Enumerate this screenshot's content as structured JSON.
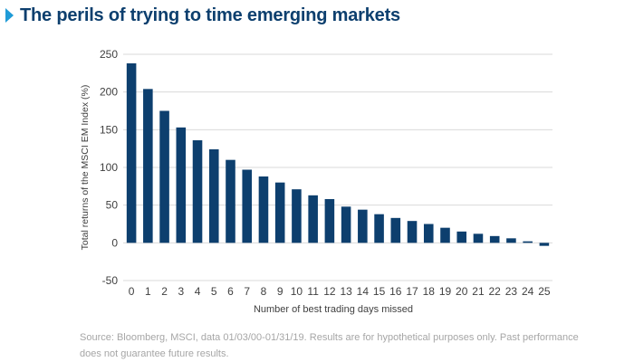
{
  "header": {
    "title": "The perils of trying to time emerging markets"
  },
  "footer": {
    "source_note": "Source: Bloomberg, MSCI, data 01/03/00-01/31/19. Results are for hypothetical purposes only. Past performance does not guarantee future results."
  },
  "colors": {
    "bar": "#0d3f6e",
    "title": "#0d3f6e",
    "accent": "#1f9bd7",
    "axis_text": "#404040",
    "gridline": "#d9d9d9",
    "source_text": "#a6a6a6"
  },
  "chart_data": {
    "type": "bar",
    "title": "",
    "xlabel": "Number of best trading days missed",
    "ylabel": "Total returns of the MSCI EM Index (%)",
    "ylim": [
      -50,
      250
    ],
    "yticks": [
      -50,
      0,
      50,
      100,
      150,
      200,
      250
    ],
    "grid": true,
    "categories": [
      "0",
      "1",
      "2",
      "3",
      "4",
      "5",
      "6",
      "7",
      "8",
      "9",
      "10",
      "11",
      "12",
      "13",
      "14",
      "15",
      "16",
      "17",
      "18",
      "19",
      "20",
      "21",
      "22",
      "23",
      "24",
      "25"
    ],
    "values": [
      238,
      204,
      175,
      153,
      136,
      124,
      110,
      97,
      88,
      80,
      71,
      63,
      58,
      48,
      44,
      38,
      33,
      29,
      25,
      20,
      15,
      12,
      9,
      6,
      2,
      -4
    ]
  }
}
